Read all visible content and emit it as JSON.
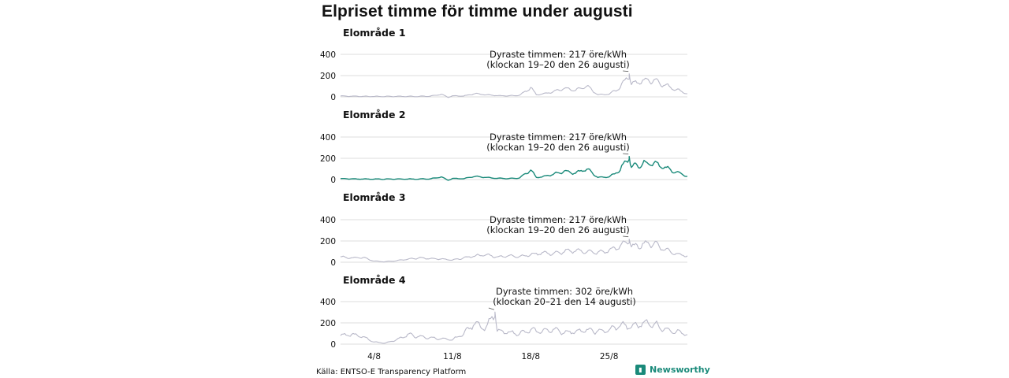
{
  "title": "Elpriset timme för timme under augusti",
  "source": "Källa: ENTSO-E Transparency Platform",
  "brand": {
    "name": "Newsworthy",
    "icon": "newsworthy-logo-icon"
  },
  "colors": {
    "highlight": "#1a8a7a",
    "muted": "#b9b9c9",
    "grid": "#dcdcdc",
    "text": "#111111"
  },
  "chart_data": {
    "type": "line",
    "xlabel": "",
    "ylabel": "",
    "xticks": [
      {
        "day": 4,
        "label": "4/8"
      },
      {
        "day": 11,
        "label": "11/8"
      },
      {
        "day": 18,
        "label": "18/8"
      },
      {
        "day": 25,
        "label": "25/8"
      }
    ],
    "ylim": [
      0,
      400
    ],
    "yticks": [
      0,
      200,
      400
    ],
    "grid": true,
    "panels": [
      {
        "title": "Elområde 1",
        "highlight": false,
        "annotation_line1": "Dyraste timmen: 217 öre/kWh",
        "annotation_line2": "(klockan 19–20 den 26 augusti)",
        "peak_day": 26.8,
        "peak_value": 217,
        "series_day_values": [
          [
            1,
            8
          ],
          [
            2,
            6
          ],
          [
            3,
            5
          ],
          [
            4,
            4
          ],
          [
            5,
            4
          ],
          [
            6,
            5
          ],
          [
            7,
            4
          ],
          [
            8,
            5
          ],
          [
            9,
            6
          ],
          [
            10,
            25
          ],
          [
            10.6,
            -5
          ],
          [
            11,
            10
          ],
          [
            12,
            8
          ],
          [
            13,
            30
          ],
          [
            14,
            20
          ],
          [
            15,
            12
          ],
          [
            16,
            10
          ],
          [
            17,
            15
          ],
          [
            18,
            90
          ],
          [
            18.5,
            20
          ],
          [
            19,
            25
          ],
          [
            20,
            50
          ],
          [
            21,
            80
          ],
          [
            22,
            60
          ],
          [
            23,
            100
          ],
          [
            24,
            20
          ],
          [
            25,
            25
          ],
          [
            26,
            90
          ],
          [
            26.8,
            217
          ],
          [
            27,
            120
          ],
          [
            28,
            150
          ],
          [
            29,
            160
          ],
          [
            30,
            110
          ],
          [
            31,
            70
          ],
          [
            32,
            30
          ]
        ]
      },
      {
        "title": "Elområde 2",
        "highlight": true,
        "annotation_line1": "Dyraste timmen: 217 öre/kWh",
        "annotation_line2": "(klockan 19–20 den 26 augusti)",
        "peak_day": 26.8,
        "peak_value": 217,
        "series_day_values": [
          [
            1,
            8
          ],
          [
            2,
            6
          ],
          [
            3,
            5
          ],
          [
            4,
            4
          ],
          [
            5,
            4
          ],
          [
            6,
            5
          ],
          [
            7,
            4
          ],
          [
            8,
            5
          ],
          [
            9,
            6
          ],
          [
            10,
            25
          ],
          [
            10.6,
            -5
          ],
          [
            11,
            10
          ],
          [
            12,
            8
          ],
          [
            13,
            30
          ],
          [
            14,
            20
          ],
          [
            15,
            12
          ],
          [
            16,
            10
          ],
          [
            17,
            15
          ],
          [
            18,
            90
          ],
          [
            18.5,
            20
          ],
          [
            19,
            25
          ],
          [
            20,
            50
          ],
          [
            21,
            80
          ],
          [
            22,
            60
          ],
          [
            23,
            100
          ],
          [
            24,
            20
          ],
          [
            25,
            25
          ],
          [
            26,
            90
          ],
          [
            26.8,
            217
          ],
          [
            27,
            120
          ],
          [
            28,
            150
          ],
          [
            29,
            160
          ],
          [
            30,
            110
          ],
          [
            31,
            70
          ],
          [
            32,
            30
          ]
        ]
      },
      {
        "title": "Elområde 3",
        "highlight": false,
        "annotation_line1": "Dyraste timmen: 217 öre/kWh",
        "annotation_line2": "(klockan 19–20 den 26 augusti)",
        "peak_day": 26.8,
        "peak_value": 217,
        "series_day_values": [
          [
            1,
            50
          ],
          [
            2,
            40
          ],
          [
            3,
            45
          ],
          [
            4,
            10
          ],
          [
            5,
            5
          ],
          [
            6,
            15
          ],
          [
            7,
            30
          ],
          [
            8,
            40
          ],
          [
            9,
            35
          ],
          [
            10,
            30
          ],
          [
            11,
            20
          ],
          [
            12,
            40
          ],
          [
            13,
            60
          ],
          [
            14,
            70
          ],
          [
            15,
            50
          ],
          [
            16,
            60
          ],
          [
            17,
            55
          ],
          [
            18,
            70
          ],
          [
            19,
            90
          ],
          [
            20,
            80
          ],
          [
            21,
            100
          ],
          [
            22,
            110
          ],
          [
            23,
            100
          ],
          [
            24,
            90
          ],
          [
            25,
            110
          ],
          [
            26,
            150
          ],
          [
            26.8,
            217
          ],
          [
            27,
            140
          ],
          [
            28,
            170
          ],
          [
            29,
            180
          ],
          [
            30,
            120
          ],
          [
            31,
            80
          ],
          [
            32,
            60
          ]
        ]
      },
      {
        "title": "Elområde 4",
        "highlight": false,
        "annotation_line1": "Dyraste timmen: 302 öre/kWh",
        "annotation_line2": "(klockan 20–21 den 14 augusti)",
        "peak_day": 14.8,
        "peak_value": 302,
        "series_day_values": [
          [
            1,
            80
          ],
          [
            2,
            90
          ],
          [
            3,
            70
          ],
          [
            4,
            20
          ],
          [
            5,
            10
          ],
          [
            6,
            40
          ],
          [
            7,
            90
          ],
          [
            8,
            70
          ],
          [
            9,
            60
          ],
          [
            10,
            50
          ],
          [
            11,
            40
          ],
          [
            12,
            100
          ],
          [
            13,
            200
          ],
          [
            14,
            150
          ],
          [
            14.8,
            302
          ],
          [
            15,
            120
          ],
          [
            16,
            110
          ],
          [
            17,
            100
          ],
          [
            18,
            130
          ],
          [
            19,
            120
          ],
          [
            20,
            140
          ],
          [
            21,
            110
          ],
          [
            22,
            120
          ],
          [
            23,
            130
          ],
          [
            24,
            120
          ],
          [
            25,
            130
          ],
          [
            26,
            180
          ],
          [
            27,
            160
          ],
          [
            28,
            200
          ],
          [
            29,
            190
          ],
          [
            30,
            140
          ],
          [
            31,
            120
          ],
          [
            32,
            90
          ]
        ]
      }
    ]
  }
}
